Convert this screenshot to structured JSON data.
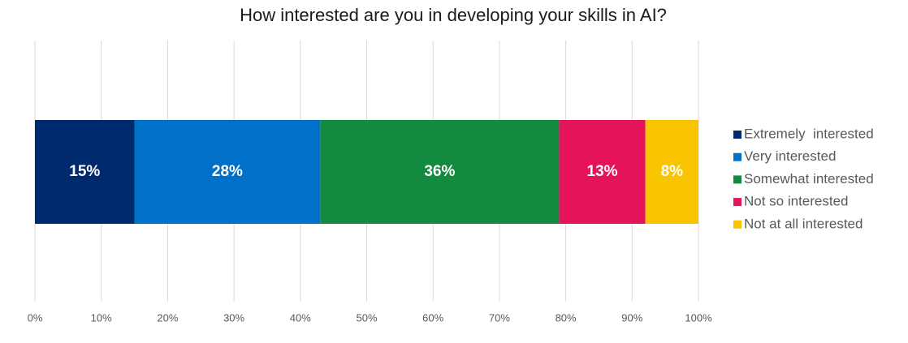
{
  "chart_data": {
    "type": "bar",
    "orientation": "horizontal",
    "stacked": true,
    "title": "How interested are you in developing your skills in AI?",
    "series": [
      {
        "name": "Extremely  interested",
        "color": "#002a6e",
        "values": [
          15
        ],
        "value_labels": [
          "15%"
        ]
      },
      {
        "name": "Very interested",
        "color": "#0070c8",
        "values": [
          28
        ],
        "value_labels": [
          "28%"
        ]
      },
      {
        "name": "Somewhat interested",
        "color": "#148a40",
        "values": [
          36
        ],
        "value_labels": [
          "36%"
        ]
      },
      {
        "name": "Not so interested",
        "color": "#e5145a",
        "values": [
          13
        ],
        "value_labels": [
          "13%"
        ]
      },
      {
        "name": "Not at all interested",
        "color": "#f9c500",
        "values": [
          8
        ],
        "value_labels": [
          "8%"
        ]
      }
    ],
    "xlim": [
      0,
      100
    ],
    "xticks": [
      {
        "value": 0,
        "label": "0%"
      },
      {
        "value": 10,
        "label": "10%"
      },
      {
        "value": 20,
        "label": "20%"
      },
      {
        "value": 30,
        "label": "30%"
      },
      {
        "value": 40,
        "label": "40%"
      },
      {
        "value": 50,
        "label": "50%"
      },
      {
        "value": 60,
        "label": "60%"
      },
      {
        "value": 70,
        "label": "70%"
      },
      {
        "value": 80,
        "label": "80%"
      },
      {
        "value": 90,
        "label": "90%"
      },
      {
        "value": 100,
        "label": "100%"
      }
    ],
    "grid": true,
    "legend": "right"
  }
}
